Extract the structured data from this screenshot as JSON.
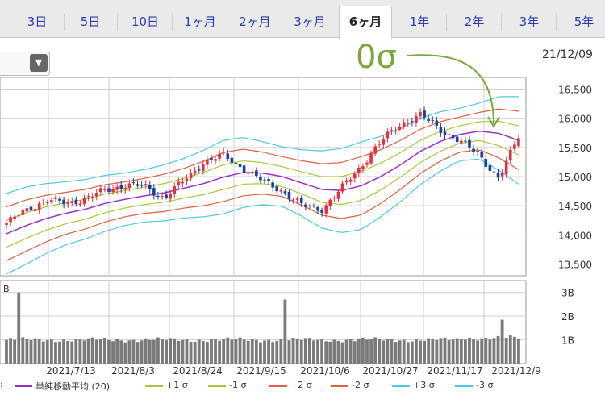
{
  "tabs": [
    {
      "label": "3日",
      "active": false
    },
    {
      "label": "5日",
      "active": false
    },
    {
      "label": "10日",
      "active": false
    },
    {
      "label": "1ヶ月",
      "active": false
    },
    {
      "label": "2ヶ月",
      "active": false
    },
    {
      "label": "3ヶ月",
      "active": false
    },
    {
      "label": "6ヶ月",
      "active": true
    },
    {
      "label": "1年",
      "active": false
    },
    {
      "label": "2年",
      "active": false
    },
    {
      "label": "3年",
      "active": false
    },
    {
      "label": "5年",
      "active": false
    }
  ],
  "select": {
    "arrow": "▼"
  },
  "header": {
    "date": "21/12/09"
  },
  "annotation": {
    "text": "0σ"
  },
  "colors": {
    "up": "#e0323f",
    "down": "#1f3fa0",
    "ma": "#9b30c8",
    "s1": "#a8c83a",
    "s2": "#e06040",
    "s3": "#50c8e0",
    "volume": "#7a7a7a",
    "grid": "#cfcfcf",
    "annotation": "#7aa83c"
  },
  "chart_data": [
    {
      "type": "candlestick",
      "name": "price",
      "ylim": [
        13300,
        16700
      ],
      "yticks": [
        13500,
        14000,
        14500,
        15000,
        15500,
        16000,
        16500
      ],
      "ytick_labels": [
        "13,500",
        "14,000",
        "14,500",
        "15,000",
        "15,500",
        "16,000",
        "16,500"
      ],
      "x_labels": [
        "2021/7/13",
        "2021/8/3",
        "2021/8/24",
        "2021/9/15",
        "2021/10/6",
        "2021/10/27",
        "2021/11/17",
        "2021/12/9"
      ],
      "close_curve": [
        14200,
        14420,
        14600,
        14540,
        14620,
        14760,
        14860,
        14830,
        14640,
        14920,
        15250,
        15360,
        15150,
        14920,
        14760,
        14500,
        14440,
        14790,
        15180,
        15600,
        15900,
        16050,
        15820,
        15600,
        15380,
        14950,
        15700
      ],
      "ma_curve": [
        14020,
        14160,
        14280,
        14370,
        14440,
        14540,
        14610,
        14670,
        14720,
        14800,
        14880,
        14990,
        15070,
        15060,
        15000,
        14890,
        14780,
        14760,
        14840,
        15000,
        15200,
        15430,
        15600,
        15720,
        15780,
        15740,
        15620
      ],
      "sigma_curve": [
        230,
        220,
        200,
        180,
        170,
        160,
        150,
        150,
        160,
        170,
        190,
        210,
        200,
        180,
        170,
        190,
        220,
        240,
        250,
        230,
        210,
        190,
        170,
        150,
        160,
        210,
        250
      ]
    },
    {
      "type": "bar",
      "name": "volume",
      "yticks": [
        1,
        2,
        3
      ],
      "ytick_labels": [
        "1B",
        "2B",
        "3B"
      ],
      "ylim": [
        0,
        3.5
      ],
      "left_label": "B",
      "base_volume": 1.0,
      "spikes": [
        {
          "index": 3,
          "value": 3.0
        },
        {
          "index": 68,
          "value": 2.7
        },
        {
          "index": 121,
          "value": 1.85
        }
      ]
    }
  ],
  "legend": {
    "prefix": ":",
    "items": [
      {
        "label": "単純移動平均 (20)",
        "color": "#9b30c8"
      },
      {
        "label": "+1 σ",
        "color": "#a8c83a"
      },
      {
        "label": "-1 σ",
        "color": "#a8c83a"
      },
      {
        "label": "+2 σ",
        "color": "#e06040"
      },
      {
        "label": "-2 σ",
        "color": "#e06040"
      },
      {
        "label": "+3 σ",
        "color": "#50c8e0"
      },
      {
        "label": "-3 σ",
        "color": "#50c8e0"
      }
    ]
  }
}
